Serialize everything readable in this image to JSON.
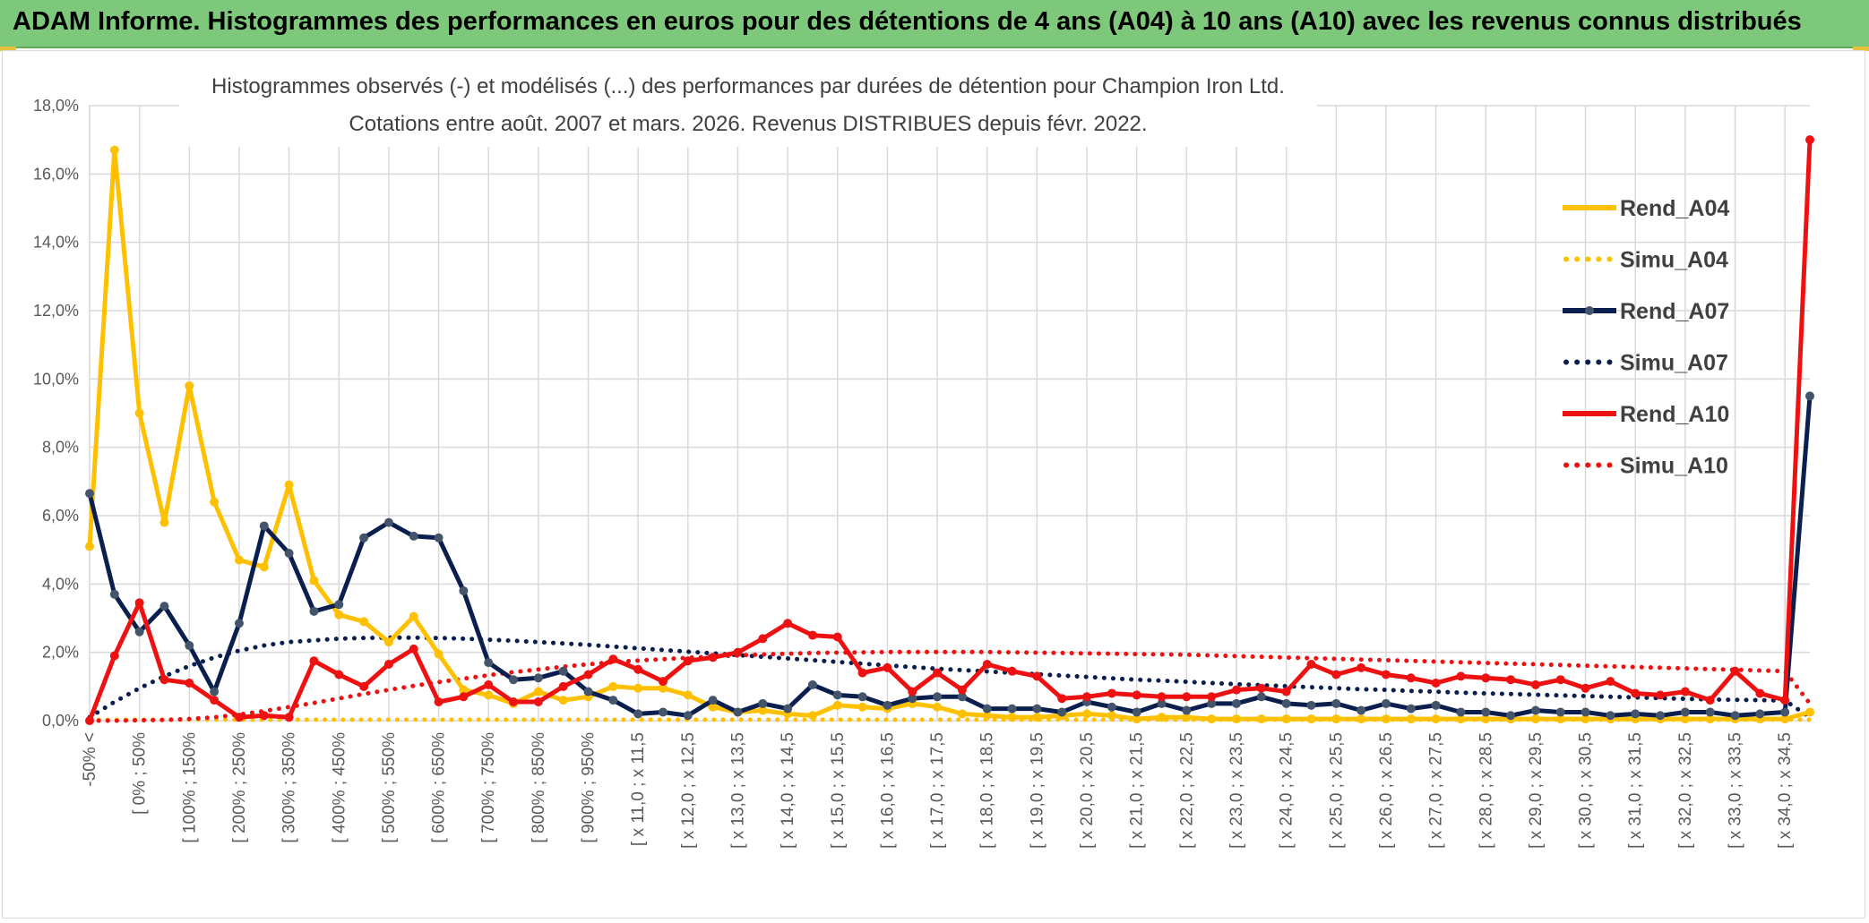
{
  "banner": {
    "title": "ADAM Informe. Histogrammes des performances en euros pour des détentions de 4 ans (A04) à 10 ans (A10) avec les revenus connus distribués"
  },
  "chart_data": {
    "type": "line",
    "title": "Histogrammes observés (-) et modélisés (...) des performances par durées de détention pour Champion Iron Ltd.",
    "subtitle": "Cotations entre août. 2007 et mars. 2026. Revenus DISTRIBUES depuis févr. 2022.",
    "ylim": [
      0,
      18
    ],
    "yticks": [
      "0,0%",
      "2,0%",
      "4,0%",
      "6,0%",
      "8,0%",
      "10,0%",
      "12,0%",
      "14,0%",
      "16,0%",
      "18,0%"
    ],
    "xtick_labels": [
      "-50% <",
      "[ 0% ; 50%",
      "[ 100% ; 150%",
      "[ 200% ; 250%",
      "[ 300% ; 350%",
      "[ 400% ; 450%",
      "[ 500% ; 550%",
      "[ 600% ; 650%",
      "[ 700% ; 750%",
      "[ 800% ; 850%",
      "[ 900% ; 950%",
      "[ x 11,0 ; x 11,5",
      "[ x 12,0 ; x 12,5",
      "[ x 13,0 ; x 13,5",
      "[ x 14,0 ; x 14,5",
      "[ x 15,0 ; x 15,5",
      "[ x 16,0 ; x 16,5",
      "[ x 17,0 ; x 17,5",
      "[ x 18,0 ; x 18,5",
      "[ x 19,0 ; x 19,5",
      "[ x 20,0 ; x 20,5",
      "[ x 21,0 ; x 21,5",
      "[ x 22,0 ; x 22,5",
      "[ x 23,0 ; x 23,5",
      "[ x 24,0 ; x 24,5",
      "[ x 25,0 ; x 25,5",
      "[ x 26,0 ; x 26,5",
      "[ x 27,0 ; x 27,5",
      "[ x 28,0 ; x 28,5",
      "[ x 29,0 ; x 29,5",
      "[ x 30,0 ; x 30,5",
      "[ x 31,0 ; x 31,5",
      "[ x 32,0 ; x 32,5",
      "[ x 33,0 ; x 33,5",
      "[ x 34,0 ; x 34,5"
    ],
    "n_points": 70,
    "series": [
      {
        "name": "Rend_A04",
        "style": "solid",
        "color": "#ffc000",
        "values": [
          5.1,
          16.7,
          9.0,
          5.8,
          9.8,
          6.4,
          4.7,
          4.5,
          6.9,
          4.1,
          3.1,
          2.9,
          2.3,
          3.05,
          1.95,
          0.9,
          0.75,
          0.5,
          0.85,
          0.6,
          0.7,
          1.0,
          0.95,
          0.95,
          0.75,
          0.4,
          0.25,
          0.3,
          0.2,
          0.15,
          0.45,
          0.4,
          0.35,
          0.5,
          0.4,
          0.2,
          0.15,
          0.1,
          0.1,
          0.15,
          0.2,
          0.15,
          0.05,
          0.1,
          0.1,
          0.05,
          0.05,
          0.05,
          0.05,
          0.05,
          0.05,
          0.05,
          0.05,
          0.05,
          0.05,
          0.05,
          0.05,
          0.05,
          0.05,
          0.05,
          0.05,
          0.05,
          0.05,
          0.05,
          0.05,
          0.05,
          0.05,
          0.05,
          0.05,
          0.25
        ]
      },
      {
        "name": "Simu_A04",
        "style": "dotted",
        "color": "#ffc000",
        "values": [
          0.03,
          0.03,
          0.03,
          0.03,
          0.03,
          0.03,
          0.03,
          0.03,
          0.03,
          0.03,
          0.03,
          0.03,
          0.03,
          0.03,
          0.03,
          0.03,
          0.03,
          0.03,
          0.03,
          0.03,
          0.03,
          0.03,
          0.03,
          0.03,
          0.03,
          0.03,
          0.03,
          0.03,
          0.03,
          0.03,
          0.03,
          0.03,
          0.03,
          0.03,
          0.03,
          0.03,
          0.03,
          0.03,
          0.03,
          0.03,
          0.03,
          0.03,
          0.03,
          0.03,
          0.03,
          0.03,
          0.03,
          0.03,
          0.03,
          0.03,
          0.03,
          0.03,
          0.03,
          0.03,
          0.03,
          0.03,
          0.03,
          0.03,
          0.03,
          0.03,
          0.03,
          0.03,
          0.03,
          0.03,
          0.03,
          0.03,
          0.03,
          0.03,
          0.03,
          0.03
        ]
      },
      {
        "name": "Rend_A07",
        "style": "solid",
        "color": "#0b1f4f",
        "values": [
          6.65,
          3.7,
          2.6,
          3.35,
          2.2,
          0.85,
          2.85,
          5.7,
          4.9,
          3.2,
          3.4,
          5.35,
          5.8,
          5.4,
          5.35,
          3.8,
          1.7,
          1.2,
          1.25,
          1.45,
          0.85,
          0.6,
          0.2,
          0.25,
          0.15,
          0.6,
          0.25,
          0.5,
          0.35,
          1.05,
          0.75,
          0.7,
          0.45,
          0.65,
          0.7,
          0.7,
          0.35,
          0.35,
          0.35,
          0.25,
          0.55,
          0.4,
          0.25,
          0.5,
          0.3,
          0.5,
          0.5,
          0.7,
          0.5,
          0.45,
          0.5,
          0.3,
          0.5,
          0.35,
          0.45,
          0.25,
          0.25,
          0.15,
          0.3,
          0.25,
          0.25,
          0.15,
          0.2,
          0.15,
          0.25,
          0.25,
          0.15,
          0.2,
          0.25,
          9.5
        ]
      },
      {
        "name": "Simu_A07",
        "style": "dotted",
        "color": "#0b1f4f",
        "values": [
          0.1,
          0.55,
          0.95,
          1.3,
          1.6,
          1.85,
          2.05,
          2.2,
          2.3,
          2.35,
          2.4,
          2.42,
          2.43,
          2.43,
          2.42,
          2.4,
          2.37,
          2.34,
          2.3,
          2.26,
          2.22,
          2.17,
          2.12,
          2.07,
          2.02,
          1.97,
          1.92,
          1.87,
          1.82,
          1.77,
          1.72,
          1.67,
          1.62,
          1.57,
          1.52,
          1.48,
          1.44,
          1.4,
          1.36,
          1.32,
          1.28,
          1.24,
          1.2,
          1.17,
          1.14,
          1.1,
          1.07,
          1.04,
          1.01,
          0.98,
          0.95,
          0.92,
          0.9,
          0.87,
          0.85,
          0.82,
          0.8,
          0.78,
          0.76,
          0.74,
          0.72,
          0.7,
          0.68,
          0.66,
          0.64,
          0.62,
          0.61,
          0.6,
          0.59,
          0.1
        ]
      },
      {
        "name": "Rend_A10",
        "style": "solid",
        "color": "#ee1111",
        "values": [
          0.0,
          1.9,
          3.45,
          1.2,
          1.1,
          0.6,
          0.1,
          0.15,
          0.1,
          1.75,
          1.35,
          1.0,
          1.65,
          2.1,
          0.55,
          0.7,
          1.05,
          0.55,
          0.55,
          1.0,
          1.35,
          1.8,
          1.5,
          1.15,
          1.75,
          1.85,
          2.0,
          2.4,
          2.85,
          2.5,
          2.45,
          1.4,
          1.55,
          0.85,
          1.4,
          0.9,
          1.65,
          1.45,
          1.3,
          0.65,
          0.7,
          0.8,
          0.75,
          0.7,
          0.7,
          0.7,
          0.9,
          0.95,
          0.85,
          1.65,
          1.35,
          1.55,
          1.35,
          1.25,
          1.1,
          1.3,
          1.25,
          1.2,
          1.05,
          1.2,
          0.95,
          1.15,
          0.8,
          0.75,
          0.85,
          0.6,
          1.45,
          0.8,
          0.6,
          17.0
        ]
      },
      {
        "name": "Simu_A10",
        "style": "dotted",
        "color": "#ee1111",
        "values": [
          0.0,
          0.0,
          0.01,
          0.02,
          0.05,
          0.1,
          0.18,
          0.28,
          0.4,
          0.52,
          0.65,
          0.78,
          0.9,
          1.02,
          1.13,
          1.23,
          1.33,
          1.42,
          1.5,
          1.58,
          1.65,
          1.71,
          1.76,
          1.8,
          1.84,
          1.88,
          1.91,
          1.94,
          1.96,
          1.98,
          1.99,
          2.0,
          2.01,
          2.01,
          2.01,
          2.01,
          2.01,
          2.0,
          1.99,
          1.98,
          1.97,
          1.96,
          1.95,
          1.94,
          1.93,
          1.91,
          1.89,
          1.87,
          1.85,
          1.83,
          1.81,
          1.79,
          1.77,
          1.75,
          1.73,
          1.71,
          1.69,
          1.67,
          1.65,
          1.63,
          1.61,
          1.59,
          1.57,
          1.55,
          1.53,
          1.51,
          1.49,
          1.47,
          1.45,
          0.5
        ]
      }
    ],
    "legend": [
      "Rend_A04",
      "Simu_A04",
      "Rend_A07",
      "Simu_A07",
      "Rend_A10",
      "Simu_A10"
    ],
    "legend_position": "top-right",
    "grid": true
  }
}
